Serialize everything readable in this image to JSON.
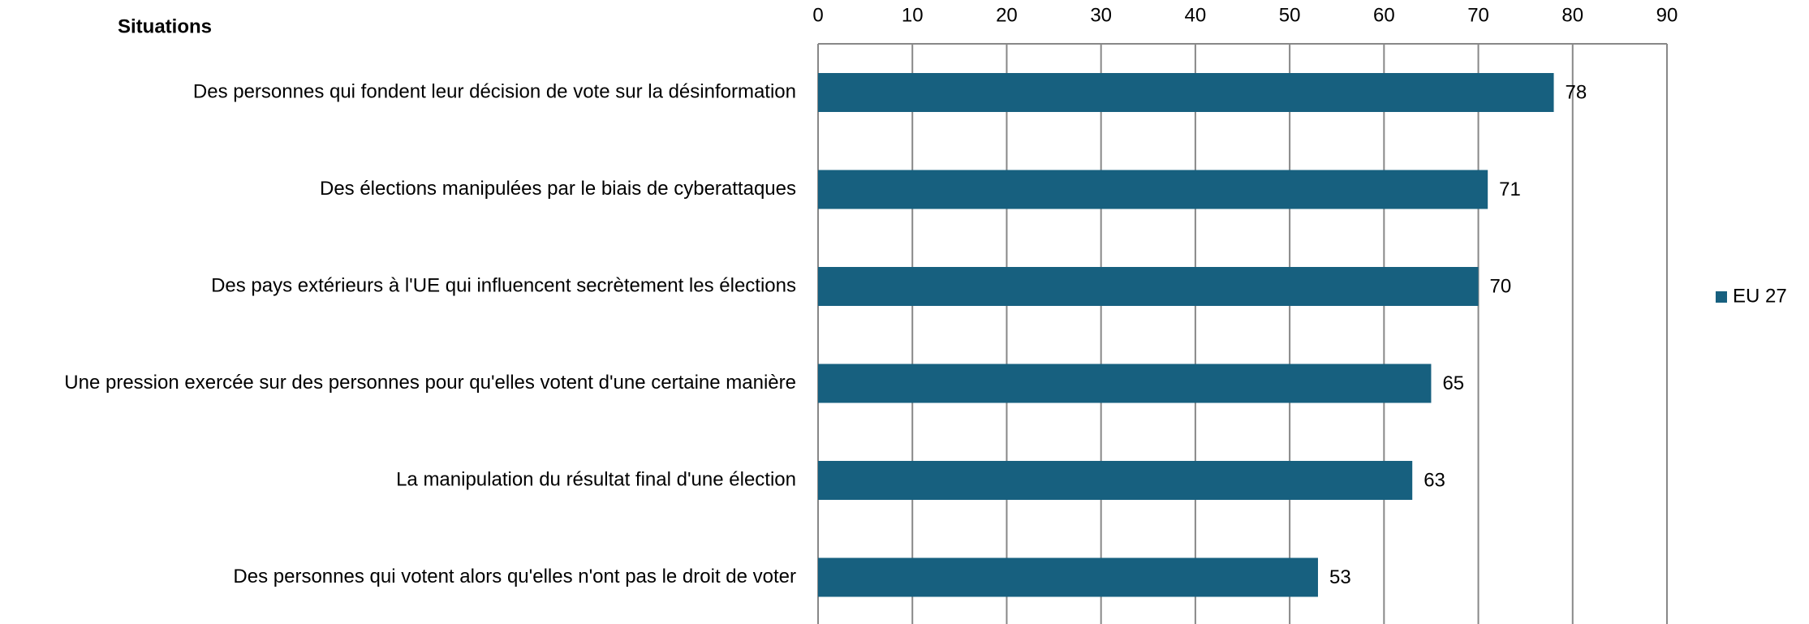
{
  "chart_data": {
    "type": "bar",
    "orientation": "horizontal",
    "y_axis_label": "Situations",
    "categories": [
      "Des personnes qui fondent leur décision de vote sur la désinformation",
      "Des élections manipulées par le biais de cyberattaques",
      "Des pays extérieurs à l'UE qui influencent secrètement les élections",
      "Une pression exercée sur des personnes pour qu'elles votent d'une certaine manière",
      "La manipulation du résultat final d'une élection",
      "Des personnes qui votent alors qu'elles n'ont pas le droit de voter"
    ],
    "series": [
      {
        "name": "EU 27",
        "color": "#17607f",
        "values": [
          78,
          71,
          70,
          65,
          63,
          53
        ]
      }
    ],
    "xlim": [
      0,
      90
    ],
    "xticks": [
      0,
      10,
      20,
      30,
      40,
      50,
      60,
      70,
      80,
      90
    ],
    "grid": true,
    "legend": "right"
  }
}
